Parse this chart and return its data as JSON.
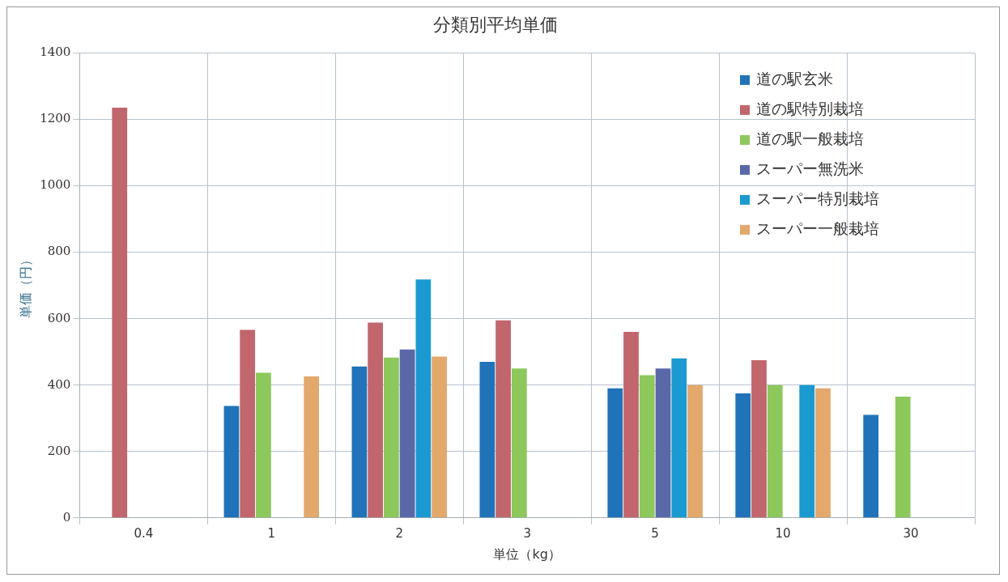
{
  "chart_data": {
    "type": "bar",
    "title": "分類別平均単価",
    "xlabel": "単位（kg）",
    "ylabel": "単価（円）",
    "categories": [
      "0.4",
      "1",
      "2",
      "3",
      "5",
      "10",
      "30"
    ],
    "series": [
      {
        "name": "道の駅玄米",
        "color": "#2073b8",
        "values": [
          null,
          337,
          456,
          470,
          390,
          375,
          310
        ]
      },
      {
        "name": "道の駅特別栽培",
        "color": "#c0666c",
        "values": [
          1235,
          566,
          588,
          595,
          560,
          475,
          null
        ]
      },
      {
        "name": "道の駅一般栽培",
        "color": "#8cc85c",
        "values": [
          null,
          437,
          483,
          450,
          430,
          400,
          365
        ]
      },
      {
        "name": "スーパー無洗米",
        "color": "#5a68a8",
        "values": [
          null,
          null,
          507,
          null,
          450,
          null,
          null
        ]
      },
      {
        "name": "スーパー特別栽培",
        "color": "#1a9ad0",
        "values": [
          null,
          null,
          718,
          null,
          480,
          400,
          null
        ]
      },
      {
        "name": "スーパー一般栽培",
        "color": "#e2a86c",
        "values": [
          null,
          426,
          486,
          null,
          400,
          390,
          null
        ]
      }
    ],
    "ylim": [
      0,
      1400
    ],
    "yticks": [
      0,
      200,
      400,
      600,
      800,
      1000,
      1200,
      1400
    ],
    "grid": true,
    "legend": "top right"
  }
}
